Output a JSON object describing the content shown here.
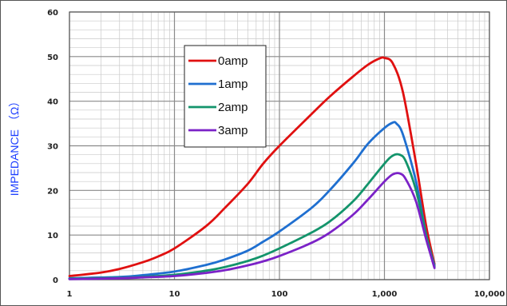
{
  "chart_data": {
    "type": "line",
    "title": "",
    "xlabel": "",
    "ylabel": "IMPEDANCE （Ω）",
    "x_scale": "log",
    "xlim": [
      1,
      10000
    ],
    "ylim": [
      0,
      60
    ],
    "x_ticks": [
      "1",
      "10",
      "100",
      "1,000",
      "10,000"
    ],
    "y_ticks": [
      "0",
      "10",
      "20",
      "30",
      "40",
      "50",
      "60"
    ],
    "grid": true,
    "legend_position": "top-center",
    "series": [
      {
        "name": "0amp",
        "color": "#e01010",
        "x": [
          1,
          2,
          3,
          5,
          7,
          10,
          20,
          30,
          50,
          70,
          100,
          200,
          300,
          500,
          700,
          900,
          1000,
          1200,
          1500,
          2000,
          2500,
          3000
        ],
        "y": [
          0.8,
          1.6,
          2.4,
          3.9,
          5.2,
          7.0,
          12.0,
          16.0,
          21.5,
          26.0,
          30.0,
          37.0,
          41.0,
          45.5,
          48.2,
          49.6,
          49.7,
          48.5,
          42.0,
          26.0,
          12.0,
          3.5
        ]
      },
      {
        "name": "1amp",
        "color": "#1f6fd0",
        "x": [
          1,
          3,
          5,
          10,
          20,
          30,
          50,
          70,
          100,
          200,
          300,
          500,
          700,
          1000,
          1200,
          1300,
          1500,
          2000,
          2500,
          3000
        ],
        "y": [
          0.3,
          0.6,
          1.0,
          1.8,
          3.3,
          4.5,
          6.5,
          8.5,
          10.8,
          16.0,
          20.0,
          26.0,
          30.5,
          34.0,
          35.2,
          35.0,
          32.5,
          22.0,
          10.0,
          3.2
        ]
      },
      {
        "name": "2amp",
        "color": "#13946b",
        "x": [
          1,
          3,
          5,
          10,
          20,
          30,
          50,
          70,
          100,
          200,
          300,
          500,
          700,
          1000,
          1200,
          1400,
          1600,
          2000,
          2500,
          3000
        ],
        "y": [
          0.2,
          0.4,
          0.6,
          1.1,
          2.0,
          2.8,
          4.2,
          5.4,
          7.0,
          10.5,
          13.0,
          17.5,
          21.5,
          26.0,
          27.8,
          28.0,
          26.5,
          20.0,
          10.0,
          2.9
        ]
      },
      {
        "name": "3amp",
        "color": "#7b22c7",
        "x": [
          1,
          3,
          5,
          10,
          20,
          30,
          50,
          70,
          100,
          200,
          300,
          500,
          700,
          1000,
          1200,
          1400,
          1600,
          2000,
          2500,
          3000
        ],
        "y": [
          0.1,
          0.3,
          0.5,
          0.8,
          1.5,
          2.1,
          3.2,
          4.1,
          5.3,
          8.2,
          10.5,
          14.5,
          18.0,
          22.0,
          23.6,
          23.8,
          22.5,
          17.5,
          9.0,
          2.6
        ]
      }
    ]
  }
}
